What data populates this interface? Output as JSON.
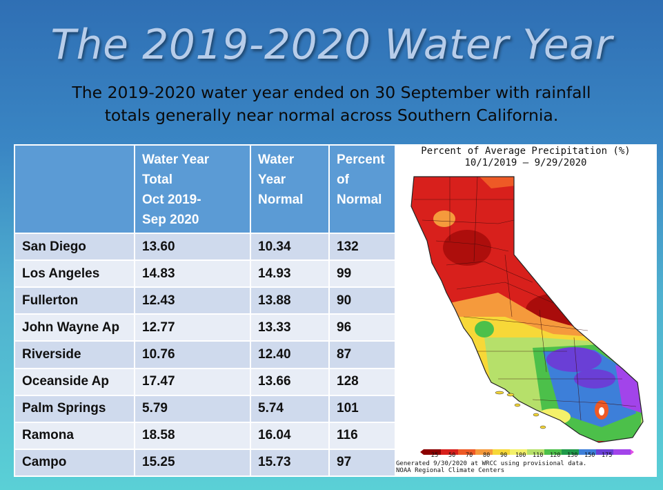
{
  "title": "The 2019-2020 Water Year",
  "subtitle_line1": "The 2019-2020 water year ended on 30 September with rainfall",
  "subtitle_line2": "totals generally near normal across Southern California.",
  "chart_data": [
    {
      "type": "table",
      "columns": [
        "",
        "Water Year Total Oct 2019-Sep 2020",
        "Water Year Normal",
        "Percent of Normal"
      ],
      "header_lines": {
        "total": [
          "Water Year",
          "Total",
          "Oct 2019-",
          "Sep 2020"
        ],
        "normal": [
          "Water",
          "Year",
          "Normal"
        ],
        "percent": [
          "Percent",
          "of",
          "Normal"
        ]
      },
      "rows": [
        {
          "station": "San Diego",
          "total": "13.60",
          "normal": "10.34",
          "percent": "132"
        },
        {
          "station": "Los Angeles",
          "total": "14.83",
          "normal": "14.93",
          "percent": "99"
        },
        {
          "station": "Fullerton",
          "total": "12.43",
          "normal": "13.88",
          "percent": "90"
        },
        {
          "station": "John Wayne Ap",
          "total": "12.77",
          "normal": "13.33",
          "percent": "96"
        },
        {
          "station": "Riverside",
          "total": "10.76",
          "normal": "12.40",
          "percent": "87"
        },
        {
          "station": "Oceanside Ap",
          "total": "17.47",
          "normal": "13.66",
          "percent": "128"
        },
        {
          "station": "Palm Springs",
          "total": "5.79",
          "normal": "5.74",
          "percent": "101"
        },
        {
          "station": "Ramona",
          "total": "18.58",
          "normal": "16.04",
          "percent": "116"
        },
        {
          "station": "Campo",
          "total": "15.25",
          "normal": "15.73",
          "percent": "97"
        }
      ]
    },
    {
      "type": "heatmap",
      "title_line1": "Percent of Average Precipitation (%)",
      "title_line2": "10/1/2019 – 9/29/2020",
      "colorbar": {
        "ticks": [
          "25",
          "50",
          "70",
          "80",
          "90",
          "100",
          "110",
          "120",
          "130",
          "150",
          "175"
        ],
        "colors": [
          "#8b0000",
          "#d8201c",
          "#ee5a26",
          "#f59a3c",
          "#f7d838",
          "#f4f16a",
          "#b6e06a",
          "#4cc04a",
          "#1f9a4a",
          "#3d7fd9",
          "#6a3fd6",
          "#a244ea",
          "#e04fe6"
        ]
      },
      "credit_line1": "Generated 9/30/2020 at WRCC using provisional data.",
      "credit_line2": "NOAA Regional Climate Centers"
    }
  ]
}
